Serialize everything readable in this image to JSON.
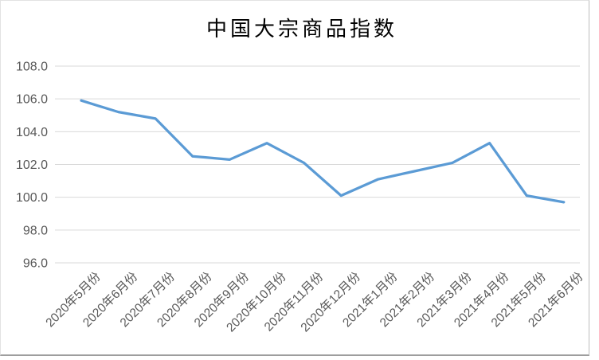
{
  "chart_data": {
    "type": "line",
    "title": "中国大宗商品指数",
    "categories": [
      "2020年5月份",
      "2020年6月份",
      "2020年7月份",
      "2020年8月份",
      "2020年9月份",
      "2020年10月份",
      "2020年11月份",
      "2020年12月份",
      "2021年1月份",
      "2021年2月份",
      "2021年3月份",
      "2021年4月份",
      "2021年5月份",
      "2021年6月份"
    ],
    "values": [
      105.9,
      105.2,
      104.8,
      102.5,
      102.3,
      103.3,
      102.1,
      100.1,
      101.1,
      101.6,
      102.1,
      103.3,
      100.1,
      99.7
    ],
    "ylim": [
      96.0,
      108.0
    ],
    "ytick_step": 2.0,
    "ytick_labels": [
      "108.0",
      "106.0",
      "104.0",
      "102.0",
      "100.0",
      "98.0",
      "96.0"
    ],
    "xlabel": "",
    "ylabel": "",
    "grid": "horizontal",
    "legend": "none",
    "x_label_rotation_deg": 45,
    "colors": {
      "line": "#5b9bd5",
      "gridline": "#d9d9d9",
      "tick_label": "#595959",
      "title": "#595959"
    }
  }
}
